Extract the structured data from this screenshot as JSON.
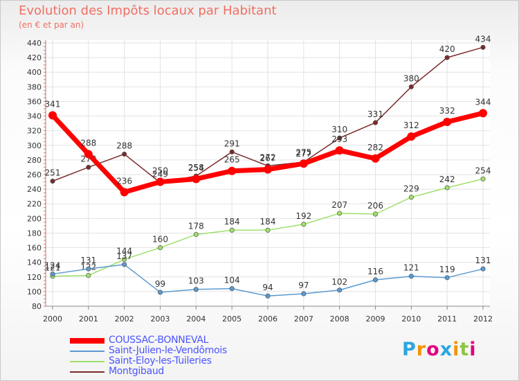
{
  "header": {
    "title": "Evolution des Impôts locaux par Habitant",
    "subtitle": "(en € et par an)"
  },
  "logo": {
    "letters": [
      "P",
      "r",
      "o",
      "x",
      "i",
      "t",
      "i"
    ],
    "colors": [
      "#2aa6e0",
      "#f29400",
      "#e4007f",
      "#2aa6e0",
      "#f29400",
      "#8cc63f",
      "#e4007f"
    ]
  },
  "chart_data": {
    "type": "line",
    "title": "Evolution des Impôts locaux par Habitant",
    "subtitle": "(en € et par an)",
    "x": [
      "2000",
      "2001",
      "2002",
      "2003",
      "2004",
      "2005",
      "2006",
      "2007",
      "2008",
      "2009",
      "2010",
      "2011",
      "2012"
    ],
    "ylim": [
      80,
      440
    ],
    "yticks": [
      80,
      100,
      120,
      140,
      160,
      180,
      200,
      220,
      240,
      260,
      280,
      300,
      320,
      340,
      360,
      380,
      400,
      420,
      440
    ],
    "grid": true,
    "legend_position": "bottom-left",
    "series": [
      {
        "name": "Montgibaud",
        "color": "#7a2b2b",
        "values": [
          251,
          270,
          288,
          249,
          258,
          291,
          272,
          277,
          310,
          331,
          380,
          420,
          434
        ]
      },
      {
        "name": "Saint-Eloy-les-Tuileries",
        "color": "#9ee06b",
        "values": [
          121,
          122,
          144,
          160,
          178,
          184,
          184,
          192,
          207,
          206,
          229,
          242,
          254
        ]
      },
      {
        "name": "Saint-Julien-le-Vendômois",
        "color": "#5a9ad0",
        "values": [
          124,
          131,
          137,
          99,
          103,
          104,
          94,
          97,
          102,
          116,
          121,
          119,
          131
        ]
      },
      {
        "name": "COUSSAC-BONNEVAL",
        "color": "#ff0000",
        "values": [
          341,
          288,
          236,
          250,
          254,
          265,
          267,
          275,
          293,
          282,
          312,
          332,
          344
        ]
      }
    ],
    "legend": [
      "COUSSAC-BONNEVAL",
      "Saint-Julien-le-Vendômois",
      "Saint-Eloy-les-Tuileries",
      "Montgibaud"
    ]
  }
}
